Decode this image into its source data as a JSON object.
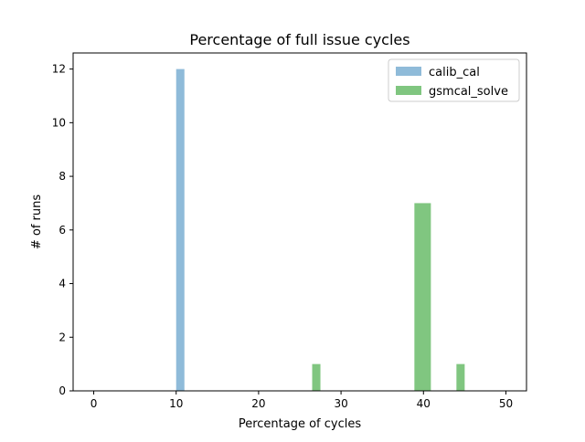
{
  "chart_data": {
    "type": "bar",
    "title": "Percentage of full issue cycles",
    "xlabel": "Percentage of cycles",
    "ylabel": "# of runs",
    "xlim": [
      -2.5,
      52.5
    ],
    "ylim": [
      0,
      12.6
    ],
    "xticks": [
      0,
      10,
      20,
      30,
      40,
      50
    ],
    "yticks": [
      0,
      2,
      4,
      6,
      8,
      10,
      12
    ],
    "grid": false,
    "legend_position": "top-right",
    "series": [
      {
        "name": "calib_cal",
        "color": "#1f77b4",
        "opacity": 0.5,
        "bins": [
          {
            "x0": 10.0,
            "x1": 11.0,
            "count": 12
          }
        ]
      },
      {
        "name": "gsmcal_solve",
        "color": "#2ca02c",
        "opacity": 0.6,
        "bins": [
          {
            "x0": 26.5,
            "x1": 27.5,
            "count": 1
          },
          {
            "x0": 38.9,
            "x1": 40.9,
            "count": 7
          },
          {
            "x0": 44.0,
            "x1": 45.0,
            "count": 1
          }
        ]
      }
    ]
  }
}
